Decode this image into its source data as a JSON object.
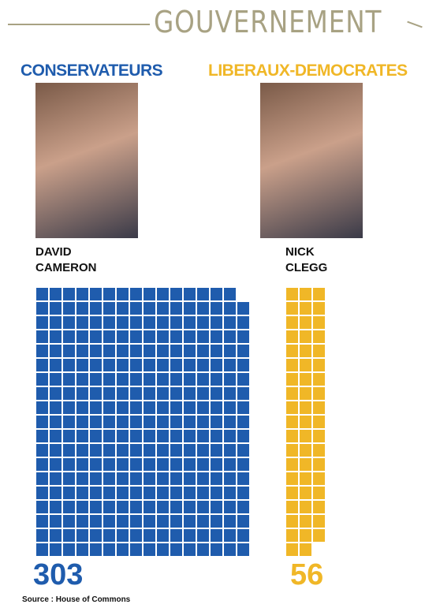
{
  "title": "GOUVERNEMENT",
  "chart_data": {
    "type": "waffle",
    "categories": [
      "CONSERVATEURS",
      "LIBERAUX-DEMOCRATES"
    ],
    "leaders": [
      "DAVID CAMERON",
      "NICK CLEGG"
    ],
    "values": [
      303,
      56
    ],
    "colors": [
      "#1f5cad",
      "#f0b727"
    ]
  },
  "source": "Source : House of Commons"
}
